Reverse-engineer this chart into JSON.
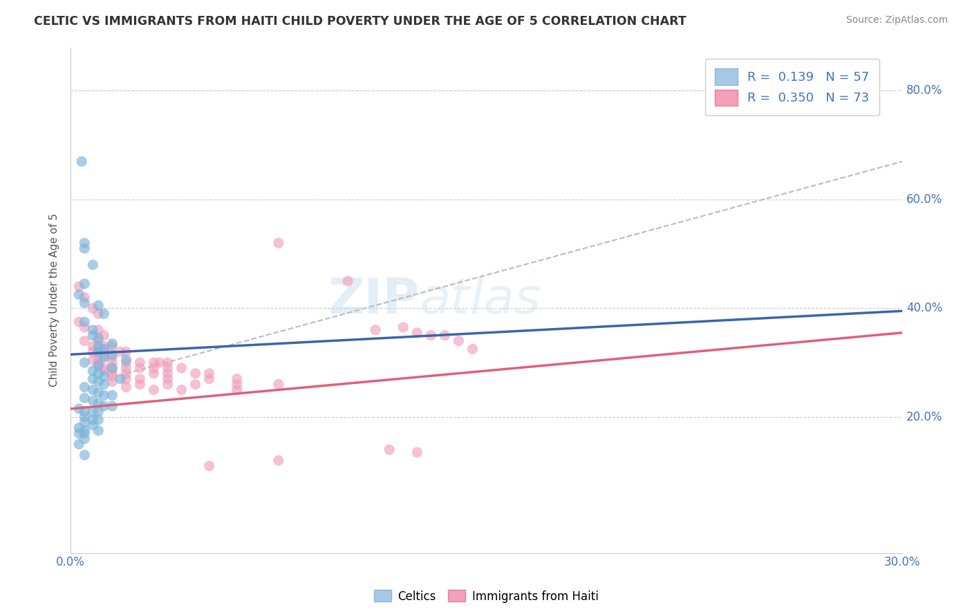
{
  "title": "CELTIC VS IMMIGRANTS FROM HAITI CHILD POVERTY UNDER THE AGE OF 5 CORRELATION CHART",
  "source": "Source: ZipAtlas.com",
  "ylabel": "Child Poverty Under the Age of 5",
  "ylabel_right_ticks": [
    "20.0%",
    "40.0%",
    "60.0%",
    "80.0%"
  ],
  "ylabel_right_vals": [
    20.0,
    40.0,
    60.0,
    80.0
  ],
  "xmin": 0.0,
  "xmax": 30.0,
  "ymin": -5.0,
  "ymax": 88.0,
  "celtics_color": "#7ab3d9",
  "haiti_color": "#f0a0bc",
  "celtics_line_color": "#3a65b0",
  "haiti_line_color": "#e0607a",
  "celtics_scatter": [
    [
      0.4,
      67.0
    ],
    [
      0.5,
      52.0
    ],
    [
      0.5,
      51.0
    ],
    [
      0.8,
      48.0
    ],
    [
      0.5,
      44.5
    ],
    [
      0.3,
      42.5
    ],
    [
      0.5,
      41.0
    ],
    [
      1.0,
      40.5
    ],
    [
      1.2,
      39.0
    ],
    [
      0.5,
      37.5
    ],
    [
      0.8,
      36.0
    ],
    [
      0.8,
      35.0
    ],
    [
      1.0,
      34.5
    ],
    [
      1.5,
      33.5
    ],
    [
      1.0,
      33.0
    ],
    [
      1.2,
      32.5
    ],
    [
      1.0,
      32.0
    ],
    [
      1.5,
      31.5
    ],
    [
      1.2,
      31.0
    ],
    [
      2.0,
      30.5
    ],
    [
      0.5,
      30.0
    ],
    [
      1.0,
      29.5
    ],
    [
      1.5,
      29.0
    ],
    [
      0.8,
      28.5
    ],
    [
      1.0,
      28.0
    ],
    [
      1.2,
      27.5
    ],
    [
      1.8,
      27.0
    ],
    [
      0.8,
      27.0
    ],
    [
      1.0,
      26.5
    ],
    [
      1.2,
      26.0
    ],
    [
      0.5,
      25.5
    ],
    [
      0.8,
      25.0
    ],
    [
      1.0,
      24.5
    ],
    [
      1.2,
      24.0
    ],
    [
      1.5,
      24.0
    ],
    [
      0.5,
      23.5
    ],
    [
      0.8,
      23.0
    ],
    [
      1.0,
      22.5
    ],
    [
      1.2,
      22.0
    ],
    [
      1.5,
      22.0
    ],
    [
      0.3,
      21.5
    ],
    [
      0.5,
      21.0
    ],
    [
      0.8,
      21.0
    ],
    [
      1.0,
      21.0
    ],
    [
      0.5,
      20.0
    ],
    [
      0.8,
      19.5
    ],
    [
      1.0,
      19.5
    ],
    [
      0.5,
      19.0
    ],
    [
      0.8,
      18.5
    ],
    [
      0.3,
      18.0
    ],
    [
      0.5,
      17.5
    ],
    [
      1.0,
      17.5
    ],
    [
      0.3,
      17.0
    ],
    [
      0.5,
      17.0
    ],
    [
      0.5,
      16.0
    ],
    [
      0.3,
      15.0
    ],
    [
      0.5,
      13.0
    ]
  ],
  "haiti_scatter": [
    [
      0.3,
      44.0
    ],
    [
      0.5,
      42.0
    ],
    [
      0.8,
      40.0
    ],
    [
      1.0,
      39.0
    ],
    [
      0.3,
      37.5
    ],
    [
      0.5,
      36.5
    ],
    [
      1.0,
      36.0
    ],
    [
      1.2,
      35.0
    ],
    [
      0.5,
      34.0
    ],
    [
      1.0,
      34.0
    ],
    [
      0.8,
      33.0
    ],
    [
      1.2,
      33.0
    ],
    [
      1.5,
      33.0
    ],
    [
      0.8,
      32.0
    ],
    [
      1.0,
      32.0
    ],
    [
      1.2,
      32.0
    ],
    [
      1.8,
      32.0
    ],
    [
      2.0,
      32.0
    ],
    [
      1.0,
      31.0
    ],
    [
      1.2,
      31.0
    ],
    [
      1.5,
      31.0
    ],
    [
      0.8,
      30.5
    ],
    [
      1.0,
      30.0
    ],
    [
      1.5,
      30.0
    ],
    [
      2.0,
      30.0
    ],
    [
      2.5,
      30.0
    ],
    [
      3.0,
      30.0
    ],
    [
      3.2,
      30.0
    ],
    [
      3.5,
      30.0
    ],
    [
      1.0,
      29.5
    ],
    [
      1.2,
      29.0
    ],
    [
      1.5,
      29.0
    ],
    [
      2.0,
      29.0
    ],
    [
      2.5,
      29.0
    ],
    [
      3.0,
      29.0
    ],
    [
      3.5,
      29.0
    ],
    [
      4.0,
      29.0
    ],
    [
      1.2,
      28.5
    ],
    [
      1.5,
      28.0
    ],
    [
      2.0,
      28.0
    ],
    [
      3.0,
      28.0
    ],
    [
      3.5,
      28.0
    ],
    [
      4.5,
      28.0
    ],
    [
      5.0,
      28.0
    ],
    [
      1.5,
      27.5
    ],
    [
      2.0,
      27.0
    ],
    [
      2.5,
      27.0
    ],
    [
      3.5,
      27.0
    ],
    [
      5.0,
      27.0
    ],
    [
      6.0,
      27.0
    ],
    [
      1.5,
      26.5
    ],
    [
      2.5,
      26.0
    ],
    [
      3.5,
      26.0
    ],
    [
      4.5,
      26.0
    ],
    [
      6.0,
      26.0
    ],
    [
      7.5,
      26.0
    ],
    [
      2.0,
      25.5
    ],
    [
      3.0,
      25.0
    ],
    [
      4.0,
      25.0
    ],
    [
      6.0,
      25.0
    ],
    [
      7.5,
      52.0
    ],
    [
      10.0,
      45.0
    ],
    [
      11.0,
      36.0
    ],
    [
      12.0,
      36.5
    ],
    [
      12.5,
      35.5
    ],
    [
      13.0,
      35.0
    ],
    [
      13.5,
      35.0
    ],
    [
      14.0,
      34.0
    ],
    [
      14.5,
      32.5
    ],
    [
      12.5,
      13.5
    ],
    [
      11.5,
      14.0
    ],
    [
      5.0,
      11.0
    ],
    [
      7.5,
      12.0
    ]
  ],
  "celtics_line": {
    "x0": 0.0,
    "y0": 31.5,
    "x1": 30.0,
    "y1": 39.5
  },
  "haiti_line": {
    "x0": 0.0,
    "y0": 21.5,
    "x1": 30.0,
    "y1": 35.5
  },
  "dashed_line": {
    "x0": 2.0,
    "y0": 28.0,
    "x1": 30.0,
    "y1": 67.0
  }
}
